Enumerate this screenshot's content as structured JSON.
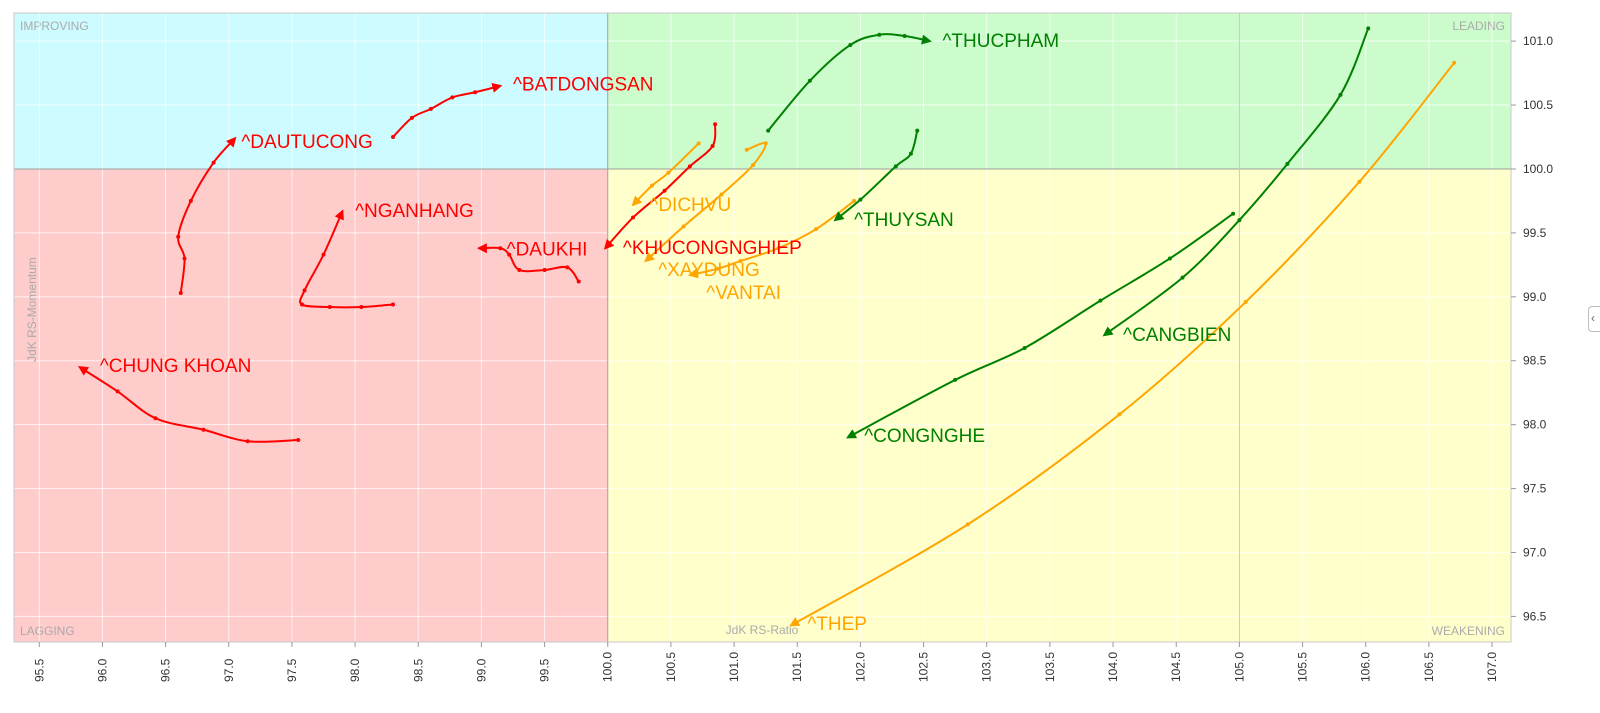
{
  "chart_data": {
    "type": "scatter",
    "subtype": "relative-rotation-graph",
    "xlabel": "JdK RS-Ratio",
    "ylabel": "JdK RS-Momentum",
    "xlim": [
      95.3,
      107.15
    ],
    "ylim": [
      96.3,
      101.22
    ],
    "x_ticks": [
      "95.5",
      "96.0",
      "96.5",
      "97.0",
      "97.5",
      "98.0",
      "98.5",
      "99.0",
      "99.5",
      "100.0",
      "100.5",
      "101.0",
      "101.5",
      "102.0",
      "102.5",
      "103.0",
      "103.5",
      "104.0",
      "104.5",
      "105.0",
      "105.5",
      "106.0",
      "106.5",
      "107.0"
    ],
    "y_ticks": [
      "96.5",
      "97.0",
      "97.5",
      "98.0",
      "98.5",
      "99.0",
      "99.5",
      "100.0",
      "100.5",
      "101.0"
    ],
    "center": [
      100.0,
      100.0
    ],
    "grid": true,
    "quadrants": {
      "improving": {
        "label": "IMPROVING",
        "color": "#ccfcff"
      },
      "leading": {
        "label": "LEADING",
        "color": "#ccfccc"
      },
      "lagging": {
        "label": "LAGGING",
        "color": "#ffcccc"
      },
      "weakening": {
        "label": "WEAKENING",
        "color": "#ffffcc"
      }
    },
    "series": [
      {
        "name": "^BATDONGSAN",
        "color": "#ff0000",
        "points": [
          [
            98.3,
            100.25
          ],
          [
            98.45,
            100.4
          ],
          [
            98.6,
            100.47
          ],
          [
            98.77,
            100.56
          ],
          [
            98.95,
            100.6
          ],
          [
            99.15,
            100.65
          ]
        ]
      },
      {
        "name": "^DAUTUCONG",
        "color": "#ff0000",
        "points": [
          [
            96.62,
            99.03
          ],
          [
            96.65,
            99.3
          ],
          [
            96.6,
            99.47
          ],
          [
            96.7,
            99.75
          ],
          [
            96.88,
            100.05
          ],
          [
            97.05,
            100.24
          ]
        ]
      },
      {
        "name": "^NGANHANG",
        "color": "#ff0000",
        "points": [
          [
            98.3,
            98.94
          ],
          [
            98.05,
            98.92
          ],
          [
            97.8,
            98.92
          ],
          [
            97.58,
            98.94
          ],
          [
            97.6,
            99.05
          ],
          [
            97.75,
            99.33
          ],
          [
            97.9,
            99.67
          ]
        ]
      },
      {
        "name": "^DAUKHI",
        "color": "#ff0000",
        "points": [
          [
            99.77,
            99.12
          ],
          [
            99.68,
            99.23
          ],
          [
            99.5,
            99.21
          ],
          [
            99.3,
            99.21
          ],
          [
            99.22,
            99.33
          ],
          [
            99.15,
            99.38
          ],
          [
            98.98,
            99.38
          ]
        ]
      },
      {
        "name": "^KHUCONGNGHIEP",
        "color": "#ff0000",
        "points": [
          [
            100.85,
            100.35
          ],
          [
            100.83,
            100.18
          ],
          [
            100.65,
            100.02
          ],
          [
            100.45,
            99.83
          ],
          [
            100.2,
            99.62
          ],
          [
            99.98,
            99.38
          ]
        ]
      },
      {
        "name": "^CHUNG KHOAN",
        "color": "#ff0000",
        "points": [
          [
            97.55,
            97.88
          ],
          [
            97.15,
            97.87
          ],
          [
            96.8,
            97.96
          ],
          [
            96.42,
            98.05
          ],
          [
            96.12,
            98.26
          ],
          [
            95.82,
            98.45
          ]
        ]
      },
      {
        "name": "^DICHVU",
        "color": "#ffa500",
        "points": [
          [
            100.72,
            100.2
          ],
          [
            100.48,
            99.97
          ],
          [
            100.35,
            99.87
          ],
          [
            100.2,
            99.72
          ]
        ]
      },
      {
        "name": "^XAYDUNG",
        "color": "#ffa500",
        "points": [
          [
            101.1,
            100.15
          ],
          [
            101.25,
            100.2
          ],
          [
            101.15,
            100.03
          ],
          [
            100.9,
            99.8
          ],
          [
            100.6,
            99.55
          ],
          [
            100.3,
            99.28
          ]
        ]
      },
      {
        "name": "^VANTAI",
        "color": "#ffa500",
        "points": [
          [
            101.95,
            99.75
          ],
          [
            101.65,
            99.53
          ],
          [
            101.35,
            99.38
          ],
          [
            101.05,
            99.28
          ],
          [
            100.87,
            99.22
          ],
          [
            100.65,
            99.17
          ]
        ]
      },
      {
        "name": "^THEP",
        "color": "#ffa500",
        "points": [
          [
            106.7,
            100.83
          ],
          [
            105.95,
            99.9
          ],
          [
            105.05,
            98.96
          ],
          [
            104.05,
            98.08
          ],
          [
            102.85,
            97.22
          ],
          [
            101.45,
            96.43
          ]
        ]
      },
      {
        "name": "^THUCPHAM",
        "color": "#008000",
        "points": [
          [
            101.27,
            100.3
          ],
          [
            101.6,
            100.69
          ],
          [
            101.92,
            100.97
          ],
          [
            102.15,
            101.05
          ],
          [
            102.35,
            101.04
          ],
          [
            102.55,
            101.0
          ]
        ]
      },
      {
        "name": "^THUYSAN",
        "color": "#008000",
        "points": [
          [
            102.45,
            100.3
          ],
          [
            102.4,
            100.12
          ],
          [
            102.28,
            100.02
          ],
          [
            102.0,
            99.76
          ],
          [
            101.8,
            99.6
          ]
        ]
      },
      {
        "name": "^CANGBIEN",
        "color": "#008000",
        "points": [
          [
            106.02,
            101.1
          ],
          [
            105.8,
            100.58
          ],
          [
            105.38,
            100.04
          ],
          [
            105.0,
            99.6
          ],
          [
            104.55,
            99.15
          ],
          [
            103.93,
            98.7
          ]
        ]
      },
      {
        "name": "^CONGNGHE",
        "color": "#008000",
        "points": [
          [
            104.95,
            99.65
          ],
          [
            104.45,
            99.3
          ],
          [
            103.9,
            98.97
          ],
          [
            103.3,
            98.6
          ],
          [
            102.75,
            98.35
          ],
          [
            101.9,
            97.9
          ]
        ]
      }
    ]
  },
  "labels": [
    {
      "text": "^BATDONGSAN",
      "x": 99.25,
      "y": 100.66,
      "color": "#ff0000"
    },
    {
      "text": "^DAUTUCONG",
      "x": 97.1,
      "y": 100.21,
      "color": "#ff0000"
    },
    {
      "text": "^NGANHANG",
      "x": 98.0,
      "y": 99.67,
      "color": "#ff0000"
    },
    {
      "text": "^DAUKHI",
      "x": 99.2,
      "y": 99.37,
      "color": "#ff0000"
    },
    {
      "text": "^KHUCONGNGHIEP",
      "x": 100.12,
      "y": 99.38,
      "color": "#ff0000"
    },
    {
      "text": "^CHUNG KHOAN",
      "x": 95.98,
      "y": 98.46,
      "color": "#ff0000"
    },
    {
      "text": "^DICHVU",
      "x": 100.33,
      "y": 99.72,
      "color": "#ffa500"
    },
    {
      "text": "^XAYDUNG",
      "x": 100.4,
      "y": 99.21,
      "color": "#ffa500"
    },
    {
      "text": "^VANTAI",
      "x": 100.78,
      "y": 99.03,
      "color": "#ffa500"
    },
    {
      "text": "^THEP",
      "x": 101.58,
      "y": 96.44,
      "color": "#ffa500"
    },
    {
      "text": "^THUCPHAM",
      "x": 102.65,
      "y": 101.0,
      "color": "#008000"
    },
    {
      "text": "^THUYSAN",
      "x": 101.95,
      "y": 99.6,
      "color": "#008000"
    },
    {
      "text": "^CANGBIEN",
      "x": 104.08,
      "y": 98.7,
      "color": "#008000"
    },
    {
      "text": "^CONGNGHE",
      "x": 102.03,
      "y": 97.91,
      "color": "#008000"
    }
  ]
}
